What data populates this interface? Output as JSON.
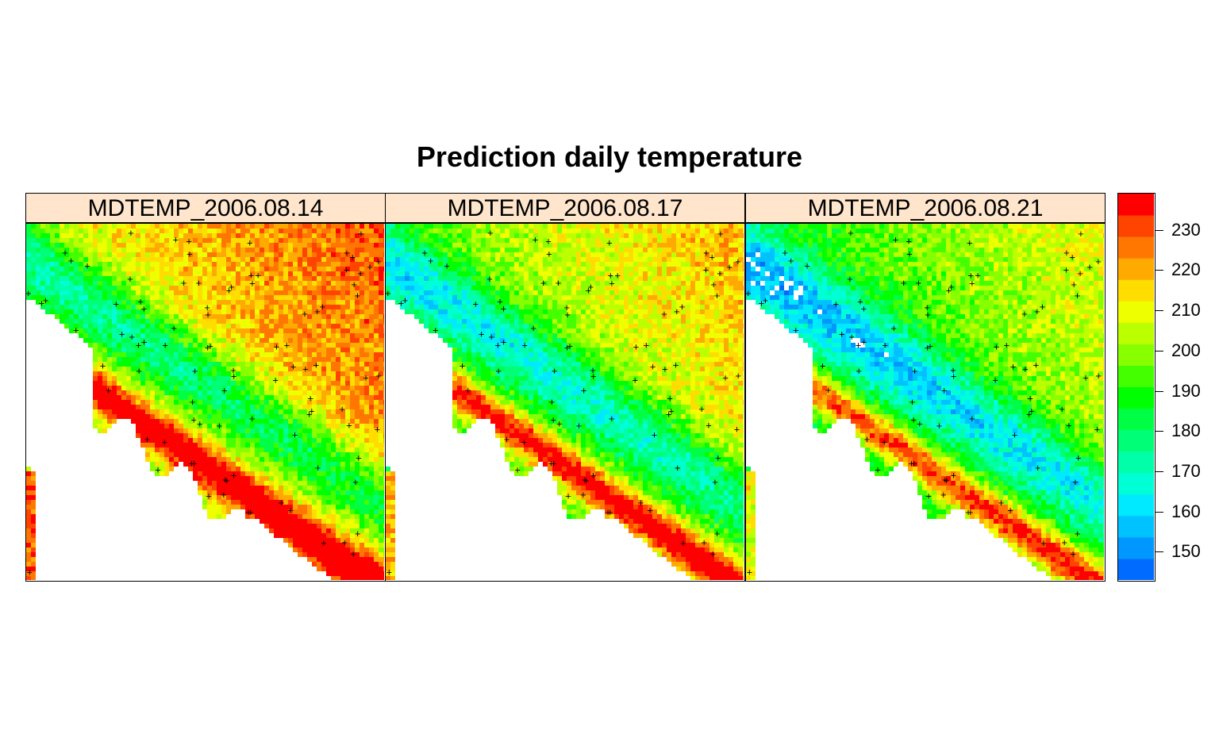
{
  "title": "Prediction daily temperature",
  "panels": [
    {
      "label": "MDTEMP_2006.08.14",
      "warmth": 0.75
    },
    {
      "label": "MDTEMP_2006.08.17",
      "warmth": 0.5
    },
    {
      "label": "MDTEMP_2006.08.21",
      "warmth": 0.3
    }
  ],
  "legend": {
    "ticks": [
      150,
      160,
      170,
      180,
      190,
      200,
      210,
      220,
      230
    ],
    "range": [
      143,
      239
    ],
    "colors": [
      "#006bff",
      "#0097ff",
      "#00c2ff",
      "#00eaff",
      "#00ffd4",
      "#00ffa8",
      "#00ff76",
      "#00ff44",
      "#00ff00",
      "#44ff00",
      "#88ff00",
      "#bbff00",
      "#eeff00",
      "#ffdd00",
      "#ffaa00",
      "#ff7700",
      "#ff4400",
      "#ff0000"
    ]
  },
  "stations_note_marker": "+"
}
